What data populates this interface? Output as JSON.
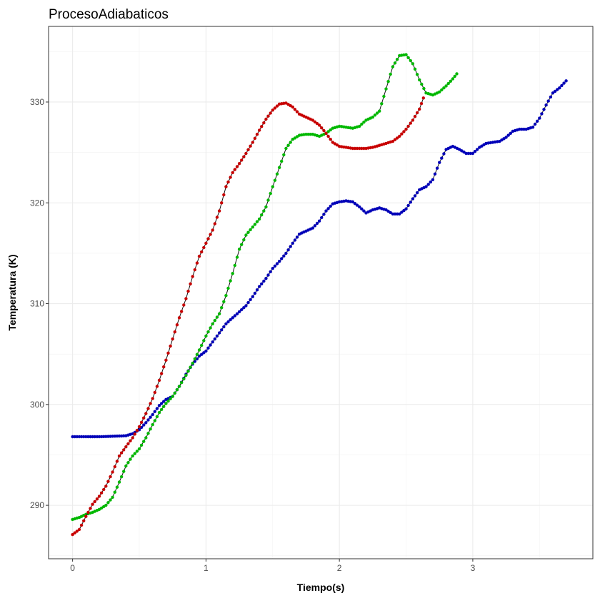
{
  "chart_data": {
    "type": "line",
    "title": "ProcesoAdiabaticos",
    "xlabel": "Tiempo(s)",
    "ylabel": "Temperatura (K)",
    "xlim": [
      -0.18,
      3.9
    ],
    "ylim": [
      284.7,
      337.5
    ],
    "xticks": [
      0,
      1,
      2,
      3
    ],
    "yticks": [
      290,
      300,
      310,
      320,
      330
    ],
    "x_tick_labels": [
      "0",
      "1",
      "2",
      "3"
    ],
    "y_tick_labels": [
      "290",
      "300",
      "310",
      "320",
      "330"
    ],
    "grid": true,
    "legend": "none",
    "series": [
      {
        "color": "#0000b8",
        "points": [
          [
            0.0,
            296.8
          ],
          [
            0.1,
            296.8
          ],
          [
            0.2,
            296.8
          ],
          [
            0.3,
            296.85
          ],
          [
            0.4,
            296.9
          ],
          [
            0.45,
            297.1
          ],
          [
            0.5,
            297.5
          ],
          [
            0.55,
            298.2
          ],
          [
            0.6,
            299.0
          ],
          [
            0.65,
            299.9
          ],
          [
            0.7,
            300.5
          ],
          [
            0.75,
            300.8
          ],
          [
            0.8,
            301.8
          ],
          [
            0.85,
            303.0
          ],
          [
            0.9,
            304.0
          ],
          [
            0.95,
            304.8
          ],
          [
            1.0,
            305.3
          ],
          [
            1.05,
            306.2
          ],
          [
            1.1,
            307.1
          ],
          [
            1.15,
            308.0
          ],
          [
            1.2,
            308.6
          ],
          [
            1.25,
            309.2
          ],
          [
            1.3,
            309.8
          ],
          [
            1.35,
            310.7
          ],
          [
            1.4,
            311.7
          ],
          [
            1.45,
            312.5
          ],
          [
            1.5,
            313.5
          ],
          [
            1.55,
            314.2
          ],
          [
            1.6,
            315.0
          ],
          [
            1.65,
            316.0
          ],
          [
            1.7,
            316.9
          ],
          [
            1.75,
            317.2
          ],
          [
            1.8,
            317.5
          ],
          [
            1.85,
            318.2
          ],
          [
            1.9,
            319.2
          ],
          [
            1.95,
            319.9
          ],
          [
            2.0,
            320.1
          ],
          [
            2.05,
            320.2
          ],
          [
            2.1,
            320.1
          ],
          [
            2.15,
            319.6
          ],
          [
            2.2,
            319.0
          ],
          [
            2.25,
            319.3
          ],
          [
            2.3,
            319.5
          ],
          [
            2.35,
            319.3
          ],
          [
            2.4,
            318.9
          ],
          [
            2.45,
            318.9
          ],
          [
            2.5,
            319.4
          ],
          [
            2.55,
            320.4
          ],
          [
            2.6,
            321.3
          ],
          [
            2.65,
            321.6
          ],
          [
            2.7,
            322.3
          ],
          [
            2.75,
            324.0
          ],
          [
            2.8,
            325.3
          ],
          [
            2.85,
            325.6
          ],
          [
            2.9,
            325.3
          ],
          [
            2.95,
            324.9
          ],
          [
            3.0,
            324.9
          ],
          [
            3.05,
            325.5
          ],
          [
            3.1,
            325.9
          ],
          [
            3.15,
            326.0
          ],
          [
            3.2,
            326.1
          ],
          [
            3.25,
            326.5
          ],
          [
            3.3,
            327.1
          ],
          [
            3.35,
            327.3
          ],
          [
            3.4,
            327.3
          ],
          [
            3.45,
            327.5
          ],
          [
            3.5,
            328.4
          ],
          [
            3.55,
            329.7
          ],
          [
            3.6,
            330.9
          ],
          [
            3.65,
            331.4
          ],
          [
            3.7,
            332.1
          ]
        ]
      },
      {
        "color": "#00b800",
        "points": [
          [
            0.0,
            288.6
          ],
          [
            0.05,
            288.8
          ],
          [
            0.1,
            289.1
          ],
          [
            0.15,
            289.3
          ],
          [
            0.2,
            289.6
          ],
          [
            0.25,
            290.0
          ],
          [
            0.3,
            290.8
          ],
          [
            0.35,
            292.3
          ],
          [
            0.4,
            293.9
          ],
          [
            0.45,
            294.9
          ],
          [
            0.5,
            295.6
          ],
          [
            0.55,
            296.7
          ],
          [
            0.6,
            298.0
          ],
          [
            0.65,
            299.2
          ],
          [
            0.7,
            300.1
          ],
          [
            0.75,
            300.8
          ],
          [
            0.8,
            301.8
          ],
          [
            0.85,
            302.9
          ],
          [
            0.9,
            304.1
          ],
          [
            0.95,
            305.4
          ],
          [
            1.0,
            306.8
          ],
          [
            1.05,
            308.0
          ],
          [
            1.1,
            309.0
          ],
          [
            1.15,
            310.8
          ],
          [
            1.2,
            313.0
          ],
          [
            1.25,
            315.4
          ],
          [
            1.3,
            316.8
          ],
          [
            1.35,
            317.6
          ],
          [
            1.4,
            318.4
          ],
          [
            1.45,
            319.6
          ],
          [
            1.5,
            321.6
          ],
          [
            1.55,
            323.5
          ],
          [
            1.6,
            325.4
          ],
          [
            1.65,
            326.3
          ],
          [
            1.7,
            326.7
          ],
          [
            1.75,
            326.8
          ],
          [
            1.8,
            326.8
          ],
          [
            1.85,
            326.6
          ],
          [
            1.9,
            326.9
          ],
          [
            1.95,
            327.4
          ],
          [
            2.0,
            327.6
          ],
          [
            2.05,
            327.5
          ],
          [
            2.1,
            327.4
          ],
          [
            2.15,
            327.6
          ],
          [
            2.2,
            328.2
          ],
          [
            2.25,
            328.5
          ],
          [
            2.3,
            329.1
          ],
          [
            2.35,
            331.3
          ],
          [
            2.4,
            333.5
          ],
          [
            2.45,
            334.6
          ],
          [
            2.5,
            334.7
          ],
          [
            2.55,
            333.8
          ],
          [
            2.6,
            332.2
          ],
          [
            2.65,
            330.9
          ],
          [
            2.7,
            330.7
          ],
          [
            2.75,
            331.0
          ],
          [
            2.8,
            331.6
          ],
          [
            2.85,
            332.3
          ],
          [
            2.88,
            332.8
          ]
        ]
      },
      {
        "color": "#c80000",
        "points": [
          [
            0.0,
            287.1
          ],
          [
            0.05,
            287.6
          ],
          [
            0.1,
            288.9
          ],
          [
            0.15,
            290.1
          ],
          [
            0.2,
            290.9
          ],
          [
            0.25,
            291.9
          ],
          [
            0.3,
            293.3
          ],
          [
            0.35,
            294.9
          ],
          [
            0.4,
            295.8
          ],
          [
            0.45,
            296.7
          ],
          [
            0.5,
            297.8
          ],
          [
            0.55,
            299.1
          ],
          [
            0.6,
            300.6
          ],
          [
            0.65,
            302.4
          ],
          [
            0.7,
            304.4
          ],
          [
            0.75,
            306.5
          ],
          [
            0.8,
            308.6
          ],
          [
            0.85,
            310.5
          ],
          [
            0.9,
            312.7
          ],
          [
            0.95,
            314.7
          ],
          [
            1.0,
            316.0
          ],
          [
            1.05,
            317.3
          ],
          [
            1.1,
            319.2
          ],
          [
            1.15,
            321.6
          ],
          [
            1.2,
            323.0
          ],
          [
            1.25,
            323.9
          ],
          [
            1.3,
            324.9
          ],
          [
            1.35,
            326.0
          ],
          [
            1.4,
            327.2
          ],
          [
            1.45,
            328.3
          ],
          [
            1.5,
            329.2
          ],
          [
            1.55,
            329.8
          ],
          [
            1.6,
            329.9
          ],
          [
            1.65,
            329.5
          ],
          [
            1.7,
            328.8
          ],
          [
            1.75,
            328.5
          ],
          [
            1.8,
            328.2
          ],
          [
            1.85,
            327.7
          ],
          [
            1.9,
            326.9
          ],
          [
            1.95,
            326.0
          ],
          [
            2.0,
            325.6
          ],
          [
            2.05,
            325.5
          ],
          [
            2.1,
            325.4
          ],
          [
            2.15,
            325.4
          ],
          [
            2.2,
            325.4
          ],
          [
            2.25,
            325.5
          ],
          [
            2.3,
            325.7
          ],
          [
            2.35,
            325.9
          ],
          [
            2.4,
            326.1
          ],
          [
            2.45,
            326.6
          ],
          [
            2.5,
            327.3
          ],
          [
            2.55,
            328.2
          ],
          [
            2.6,
            329.3
          ],
          [
            2.63,
            330.4
          ]
        ]
      }
    ]
  }
}
